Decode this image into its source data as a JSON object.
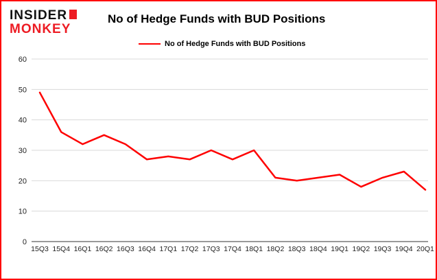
{
  "colors": {
    "brand_red": "#ed1c24",
    "border_red": "#fe0000",
    "line_red": "#fe0000",
    "grid_gray": "#d9d9d9",
    "axis_dark": "#333333"
  },
  "logo": {
    "line1": "INSIDER",
    "line2": "MONKEY"
  },
  "title": "No of Hedge Funds with BUD Positions",
  "legend": {
    "label": "No of Hedge Funds with BUD Positions"
  },
  "chart_data": {
    "type": "line",
    "title": "No of Hedge Funds with BUD Positions",
    "categories": [
      "15Q3",
      "15Q4",
      "16Q1",
      "16Q2",
      "16Q3",
      "16Q4",
      "17Q1",
      "17Q2",
      "17Q3",
      "17Q4",
      "18Q1",
      "18Q2",
      "18Q3",
      "18Q4",
      "19Q1",
      "19Q2",
      "19Q3",
      "19Q4",
      "20Q1"
    ],
    "values": [
      49,
      36,
      32,
      35,
      32,
      27,
      28,
      27,
      30,
      27,
      30,
      21,
      20,
      21,
      22,
      18,
      21,
      23,
      17
    ],
    "series": [
      {
        "name": "No of Hedge Funds with BUD Positions",
        "values": [
          49,
          36,
          32,
          35,
          32,
          27,
          28,
          27,
          30,
          27,
          30,
          21,
          20,
          21,
          22,
          18,
          21,
          23,
          17
        ]
      }
    ],
    "xlabel": "",
    "ylabel": "",
    "ylim": [
      0,
      60
    ],
    "yticks": [
      0,
      10,
      20,
      30,
      40,
      50,
      60
    ],
    "grid": true,
    "legend_position": "top-left",
    "line_color": "#fe0000"
  }
}
